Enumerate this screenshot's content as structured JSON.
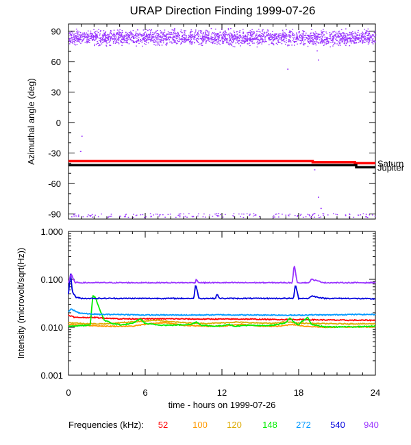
{
  "chart_data": [
    {
      "type": "scatter",
      "title": "URAP Direction Finding  1999-07-26",
      "ylabel": "Azimuthal angle (deg)",
      "xlim": [
        0,
        24
      ],
      "ylim": [
        -95,
        97
      ],
      "yticks": [
        90,
        60,
        30,
        0,
        -30,
        -60,
        -90
      ],
      "grid": false,
      "scatter_band": {
        "name": "940 kHz direction",
        "center": 84,
        "spread": 7,
        "color": "#9933ff"
      },
      "scatter_band_low": {
        "center": -91,
        "spread": 2,
        "color": "#9933ff"
      },
      "outliers": [
        {
          "x": 1.0,
          "y": -13
        },
        {
          "x": 0.9,
          "y": -28
        },
        {
          "x": 17.1,
          "y": 53
        },
        {
          "x": 19.4,
          "y": 71
        },
        {
          "x": 19.5,
          "y": 62
        },
        {
          "x": 19.2,
          "y": -46
        },
        {
          "x": 19.5,
          "y": -73
        },
        {
          "x": 19.7,
          "y": -84
        }
      ],
      "series": [
        {
          "name": "Saturn",
          "color": "#ff0000",
          "x": [
            0,
            19.1,
            19.1,
            22.4,
            22.4,
            24
          ],
          "y": [
            -38,
            -38,
            -39,
            -39,
            -40,
            -40
          ]
        },
        {
          "name": "Jupiter",
          "color": "#000000",
          "x": [
            0,
            22.5,
            22.5,
            24
          ],
          "y": [
            -42,
            -42,
            -44,
            -44
          ]
        }
      ]
    },
    {
      "type": "line",
      "ylabel": "Intensity (microvolt/sqrt(Hz))",
      "xlabel": "time - hours on 1999-07-26",
      "xlim": [
        0,
        24
      ],
      "xticks": [
        0,
        6,
        12,
        18,
        24
      ],
      "ylim": [
        0.001,
        1.0
      ],
      "yscale": "log",
      "yticks": [
        "1.000",
        "0.100",
        "0.010",
        "0.001"
      ],
      "grid": false,
      "series": [
        {
          "name": "52",
          "color": "#ff0000",
          "x": [
            0,
            0.5,
            1.0,
            2.0,
            4.0,
            6.0,
            8.0,
            10.0,
            12.0,
            14.0,
            16.0,
            18.0,
            20.0,
            22.0,
            24.0
          ],
          "y": [
            0.018,
            0.016,
            0.016,
            0.016,
            0.015,
            0.015,
            0.015,
            0.0148,
            0.0148,
            0.0148,
            0.0145,
            0.0145,
            0.0142,
            0.014,
            0.014
          ]
        },
        {
          "name": "100",
          "color": "#ff9900",
          "x": [
            0,
            1.0,
            2.0,
            3.0,
            5.0,
            6.5,
            7.5,
            9.0,
            10.5,
            12.0,
            13.5,
            15.0,
            16.5,
            17.5,
            18.5,
            20.0,
            22.0,
            24.0
          ],
          "y": [
            0.0115,
            0.011,
            0.0108,
            0.0105,
            0.0105,
            0.012,
            0.0125,
            0.011,
            0.0105,
            0.0105,
            0.0115,
            0.0105,
            0.0105,
            0.0115,
            0.0105,
            0.01,
            0.0102,
            0.0102
          ]
        },
        {
          "name": "120",
          "color": "#ddaa00",
          "x": [
            0,
            1.0,
            2.0,
            3.0,
            5.0,
            6.0,
            7.0,
            8.0,
            9.0,
            10.5,
            12.0,
            13.0,
            14.0,
            16.0,
            17.0,
            18.0,
            19.0,
            21.0,
            24.0
          ],
          "y": [
            0.0125,
            0.012,
            0.0118,
            0.0118,
            0.013,
            0.0135,
            0.014,
            0.013,
            0.0125,
            0.012,
            0.0123,
            0.0128,
            0.0125,
            0.012,
            0.013,
            0.0122,
            0.012,
            0.0118,
            0.0118
          ]
        },
        {
          "name": "148",
          "color": "#00ee00",
          "x": [
            0,
            1.0,
            1.7,
            1.9,
            2.1,
            2.4,
            2.8,
            3.5,
            4.2,
            5.0,
            5.6,
            6.0,
            7.0,
            8.0,
            9.6,
            10.0,
            10.4,
            11.5,
            12.0,
            12.5,
            13.0,
            14.0,
            15.0,
            16.0,
            17.0,
            17.3,
            17.6,
            18.0,
            18.3,
            18.7,
            19.0,
            20.0,
            22.0,
            24.0
          ],
          "y": [
            0.0105,
            0.0108,
            0.011,
            0.045,
            0.042,
            0.025,
            0.014,
            0.0118,
            0.0112,
            0.012,
            0.015,
            0.012,
            0.0112,
            0.011,
            0.0115,
            0.013,
            0.011,
            0.0105,
            0.0108,
            0.0115,
            0.0105,
            0.011,
            0.0108,
            0.011,
            0.0125,
            0.0155,
            0.013,
            0.0112,
            0.0135,
            0.016,
            0.0115,
            0.0102,
            0.0102,
            0.0105
          ]
        },
        {
          "name": "272",
          "color": "#0099ff",
          "x": [
            0,
            0.2,
            0.8,
            1.5,
            2.5,
            4.0,
            6.0,
            8.0,
            10.0,
            12.0,
            14.0,
            16.0,
            18.0,
            19.0,
            20.0,
            22.0,
            24.0
          ],
          "y": [
            0.021,
            0.024,
            0.02,
            0.019,
            0.0185,
            0.0185,
            0.018,
            0.018,
            0.018,
            0.0182,
            0.018,
            0.018,
            0.0178,
            0.0182,
            0.018,
            0.0185,
            0.0185
          ]
        },
        {
          "name": "540",
          "color": "#0000dd",
          "x": [
            0,
            0.15,
            0.3,
            0.6,
            1.0,
            2.0,
            4.0,
            6.0,
            8.0,
            9.8,
            9.95,
            10.2,
            11.5,
            11.6,
            11.8,
            14.0,
            16.0,
            17.6,
            17.75,
            18.0,
            18.8,
            19.0,
            20.0,
            22.0,
            24.0
          ],
          "y": [
            0.05,
            0.14,
            0.055,
            0.042,
            0.04,
            0.04,
            0.04,
            0.04,
            0.04,
            0.04,
            0.08,
            0.04,
            0.04,
            0.05,
            0.04,
            0.04,
            0.04,
            0.04,
            0.08,
            0.04,
            0.04,
            0.045,
            0.04,
            0.04,
            0.039
          ]
        },
        {
          "name": "940",
          "color": "#9933ff",
          "x": [
            0,
            0.2,
            0.5,
            1.0,
            4.0,
            8.0,
            9.9,
            10.0,
            10.2,
            12.0,
            16.0,
            17.5,
            17.65,
            17.9,
            18.8,
            19.0,
            20.0,
            24.0
          ],
          "y": [
            0.085,
            0.13,
            0.086,
            0.085,
            0.085,
            0.085,
            0.085,
            0.1,
            0.085,
            0.085,
            0.085,
            0.085,
            0.2,
            0.085,
            0.085,
            0.1,
            0.085,
            0.085
          ]
        }
      ]
    }
  ],
  "labels": {
    "saturn": "Saturn",
    "jupiter": "Jupiter",
    "frequencies_prefix": "Frequencies (kHz):"
  }
}
